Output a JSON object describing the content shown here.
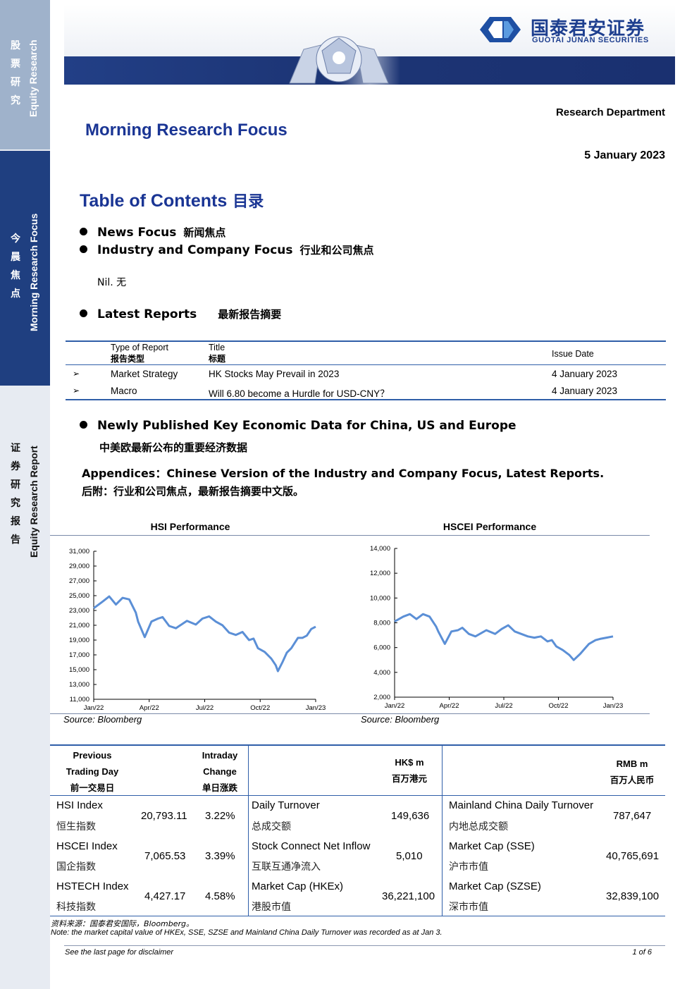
{
  "sidebar": {
    "top": {
      "cn": [
        "股",
        "票",
        "研",
        "究"
      ],
      "en": "Equity Research"
    },
    "mid": {
      "cn": [
        "今",
        "晨",
        "焦",
        "点"
      ],
      "en": "Morning Research Focus"
    },
    "bot": {
      "cn": [
        "证",
        "券",
        "研",
        "究",
        "报",
        "告"
      ],
      "en": "Equity Research Report"
    }
  },
  "header": {
    "logo_cn": "国泰君安证券",
    "logo_en": "GUOTAI JUNAN SECURITIES",
    "department": "Research Department",
    "title": "Morning Research Focus",
    "date": "5 January 2023"
  },
  "toc": {
    "title": "Table of Contents",
    "title_cn": "目录",
    "items": [
      {
        "en": "News Focus",
        "cn": "新闻焦点"
      },
      {
        "en": "Industry and Company Focus",
        "cn": "行业和公司焦点"
      }
    ],
    "nil": "Nil.  无",
    "latest_reports": {
      "en": "Latest Reports",
      "cn": "最新报告摘要"
    }
  },
  "reports_table": {
    "headers": {
      "type_en": "Type of Report",
      "type_cn": "报告类型",
      "title_en": "Title",
      "title_cn": "标题",
      "date": "Issue Date"
    },
    "rows": [
      {
        "marker": "➢",
        "type": "Market Strategy",
        "title": "HK Stocks May Prevail in 2023",
        "date": "4 January 2023"
      },
      {
        "marker": "➢",
        "type": "Macro",
        "title": "Will 6.80 become a Hurdle for USD-CNY？",
        "date": "4 January 2023"
      }
    ]
  },
  "econ": {
    "en": "Newly Published Key Economic Data for China, US and Europe",
    "cn": "中美欧最新公布的重要经济数据"
  },
  "appendix": {
    "en": "Appendices：Chinese Version of the Industry and Company Focus, Latest Reports.",
    "cn": "后附：行业和公司焦点，最新报告摘要中文版。"
  },
  "chart_data": [
    {
      "type": "line",
      "title": "HSI Performance",
      "source": "Source: Bloomberg",
      "xlabel": "",
      "ylabel": "",
      "ylim": [
        11000,
        31000
      ],
      "yticks": [
        "31,000",
        "29,000",
        "27,000",
        "25,000",
        "23,000",
        "21,000",
        "19,000",
        "17,000",
        "15,000",
        "13,000",
        "11,000"
      ],
      "xticks": [
        "Jan/22",
        "Apr/22",
        "Jul/22",
        "Oct/22",
        "Jan/23"
      ],
      "color": "#5b8fd6",
      "series": [
        {
          "values": [
            23300,
            24200,
            24900,
            23800,
            24700,
            24500,
            22700,
            21500,
            19400,
            21500,
            21900,
            22100,
            20900,
            20600,
            21600,
            21100,
            21900,
            22200,
            21500,
            21000,
            20000,
            19700,
            20100,
            19000,
            19200,
            17900,
            17400,
            16500,
            15600,
            14800,
            16000,
            17300,
            17900,
            19300,
            19300,
            19600,
            20500,
            20800
          ]
        }
      ],
      "x_position": [
        0,
        0.04,
        0.07,
        0.1,
        0.13,
        0.16,
        0.19,
        0.2,
        0.23,
        0.26,
        0.29,
        0.31,
        0.34,
        0.37,
        0.42,
        0.46,
        0.49,
        0.52,
        0.55,
        0.58,
        0.61,
        0.64,
        0.67,
        0.7,
        0.72,
        0.74,
        0.77,
        0.8,
        0.82,
        0.83,
        0.85,
        0.87,
        0.89,
        0.92,
        0.94,
        0.96,
        0.98,
        1.0
      ]
    },
    {
      "type": "line",
      "title": "HSCEI Performance",
      "source": "Source: Bloomberg",
      "xlabel": "",
      "ylabel": "",
      "ylim": [
        2000,
        14000
      ],
      "yticks": [
        "14,000",
        "12,000",
        "10,000",
        "8,000",
        "6,000",
        "4,000",
        "2,000"
      ],
      "xticks": [
        "Jan/22",
        "Apr/22",
        "Jul/22",
        "Oct/22",
        "Jan/23"
      ],
      "color": "#5b8fd6",
      "series": [
        {
          "values": [
            8100,
            8500,
            8700,
            8300,
            8700,
            8500,
            7700,
            7300,
            6300,
            7300,
            7400,
            7600,
            7100,
            6900,
            7400,
            7100,
            7500,
            7800,
            7300,
            7100,
            6900,
            6800,
            6900,
            6500,
            6600,
            6100,
            5800,
            5400,
            5000,
            5500,
            5900,
            6300,
            6600,
            6700,
            6800,
            6900
          ]
        }
      ],
      "x_position": [
        0,
        0.04,
        0.07,
        0.1,
        0.13,
        0.16,
        0.19,
        0.2,
        0.23,
        0.26,
        0.29,
        0.31,
        0.34,
        0.37,
        0.42,
        0.46,
        0.49,
        0.52,
        0.55,
        0.58,
        0.61,
        0.64,
        0.67,
        0.7,
        0.72,
        0.74,
        0.77,
        0.8,
        0.82,
        0.85,
        0.87,
        0.89,
        0.92,
        0.94,
        0.97,
        1.0
      ]
    }
  ],
  "market_table": {
    "headers": {
      "prev_en_1": "Previous",
      "prev_en_2": "Trading Day",
      "prev_cn": "前一交易日",
      "chg_en_1": "Intraday",
      "chg_en_2": "Change",
      "chg_cn": "单日涨跌",
      "hk_en": "HK$ m",
      "hk_cn": "百万港元",
      "rmb_en": "RMB m",
      "rmb_cn": "百万人民币"
    },
    "rows": [
      {
        "idx_en": "HSI Index",
        "idx_cn": "恒生指数",
        "prev": "20,793.11",
        "chg": "3.22%",
        "hk_en": "Daily Turnover",
        "hk_cn": "总成交额",
        "hk_val": "149,636",
        "cn_en": "Mainland China Daily Turnover",
        "cn_cn": "内地总成交额",
        "cn_val": "787,647"
      },
      {
        "idx_en": "HSCEI Index",
        "idx_cn": "国企指数",
        "prev": "7,065.53",
        "chg": "3.39%",
        "hk_en": "Stock Connect Net Inflow",
        "hk_cn": "互联互通净流入",
        "hk_val": "5,010",
        "cn_en": "Market Cap (SSE)",
        "cn_cn": "沪市市值",
        "cn_val": "40,765,691"
      },
      {
        "idx_en": "HSTECH Index",
        "idx_cn": "科技指数",
        "prev": "4,427.17",
        "chg": "4.58%",
        "hk_en": "Market Cap (HKEx)",
        "hk_cn": "港股市值",
        "hk_val": "36,221,100",
        "cn_en": "Market Cap (SZSE)",
        "cn_cn": "深市市值",
        "cn_val": "32,839,100"
      }
    ]
  },
  "notes": {
    "source": "资料来源：国泰君安国际，Bloomberg。",
    "note": "Note: the market capital value of HKEx, SSE, SZSE and Mainland China Daily Turnover was recorded as at Jan 3."
  },
  "footer": {
    "disclaimer": "See  the last page for disclaimer",
    "page": "1 of 6"
  }
}
